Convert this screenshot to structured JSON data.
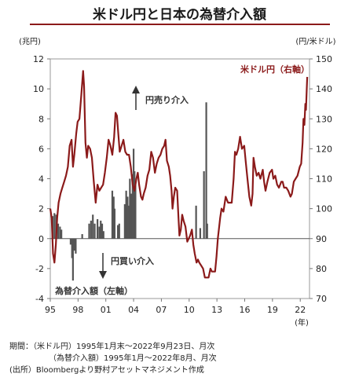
{
  "title": "米ドル円と日本の為替介入額",
  "chart_data": {
    "type": "bar+line",
    "left_axis": {
      "unit": "(兆円)",
      "ylim": [
        -4,
        12
      ],
      "ticks": [
        -4,
        -2,
        0,
        2,
        4,
        6,
        8,
        10,
        12
      ]
    },
    "right_axis": {
      "unit": "(円/米ドル)",
      "ylim": [
        70,
        150
      ],
      "ticks": [
        70,
        80,
        90,
        100,
        110,
        120,
        130,
        140,
        150
      ]
    },
    "x_axis": {
      "unit": "(年)",
      "xlim": [
        1995.0,
        2023.0
      ],
      "ticks": [
        {
          "year": 1995,
          "label": "95"
        },
        {
          "year": 1998,
          "label": "98"
        },
        {
          "year": 2001,
          "label": "01"
        },
        {
          "year": 2004,
          "label": "04"
        },
        {
          "year": 2007,
          "label": "07"
        },
        {
          "year": 2010,
          "label": "10"
        },
        {
          "year": 2013,
          "label": "13"
        },
        {
          "year": 2016,
          "label": "16"
        },
        {
          "year": 2019,
          "label": "19"
        },
        {
          "year": 2022,
          "label": "22"
        }
      ]
    },
    "line_series": {
      "name": "米ドル円（右軸）",
      "color": "#8b1a1a",
      "points": [
        [
          1995.0,
          100
        ],
        [
          1995.15,
          97
        ],
        [
          1995.3,
          85
        ],
        [
          1995.45,
          82
        ],
        [
          1995.6,
          88
        ],
        [
          1995.75,
          97
        ],
        [
          1995.9,
          102
        ],
        [
          1996.1,
          105
        ],
        [
          1996.3,
          107
        ],
        [
          1996.5,
          109
        ],
        [
          1996.7,
          111
        ],
        [
          1996.9,
          114
        ],
        [
          1997.1,
          121
        ],
        [
          1997.3,
          123
        ],
        [
          1997.45,
          114
        ],
        [
          1997.6,
          118
        ],
        [
          1997.8,
          125
        ],
        [
          1997.95,
          129
        ],
        [
          1998.15,
          130
        ],
        [
          1998.35,
          138
        ],
        [
          1998.55,
          146
        ],
        [
          1998.65,
          141
        ],
        [
          1998.8,
          122
        ],
        [
          1998.95,
          117
        ],
        [
          1999.1,
          121
        ],
        [
          1999.3,
          120
        ],
        [
          1999.5,
          117
        ],
        [
          1999.7,
          109
        ],
        [
          1999.9,
          102
        ],
        [
          2000.1,
          108
        ],
        [
          2000.3,
          106
        ],
        [
          2000.5,
          107
        ],
        [
          2000.7,
          108
        ],
        [
          2000.9,
          112
        ],
        [
          2001.1,
          117
        ],
        [
          2001.3,
          123
        ],
        [
          2001.5,
          121
        ],
        [
          2001.7,
          118
        ],
        [
          2001.9,
          124
        ],
        [
          2002.05,
          132
        ],
        [
          2002.2,
          131
        ],
        [
          2002.35,
          125
        ],
        [
          2002.5,
          119
        ],
        [
          2002.7,
          121
        ],
        [
          2002.9,
          123
        ],
        [
          2003.1,
          119
        ],
        [
          2003.3,
          118
        ],
        [
          2003.5,
          118
        ],
        [
          2003.7,
          114
        ],
        [
          2003.9,
          108
        ],
        [
          2004.1,
          106
        ],
        [
          2004.3,
          110
        ],
        [
          2004.45,
          112
        ],
        [
          2004.6,
          108
        ],
        [
          2004.8,
          104
        ],
        [
          2004.95,
          103
        ],
        [
          2005.1,
          105
        ],
        [
          2005.3,
          107
        ],
        [
          2005.5,
          111
        ],
        [
          2005.7,
          113
        ],
        [
          2005.9,
          119
        ],
        [
          2006.1,
          117
        ],
        [
          2006.3,
          112
        ],
        [
          2006.5,
          115
        ],
        [
          2006.7,
          117
        ],
        [
          2006.9,
          118
        ],
        [
          2007.1,
          120
        ],
        [
          2007.3,
          121
        ],
        [
          2007.45,
          123
        ],
        [
          2007.6,
          116
        ],
        [
          2007.8,
          114
        ],
        [
          2007.95,
          111
        ],
        [
          2008.1,
          106
        ],
        [
          2008.2,
          100
        ],
        [
          2008.35,
          104
        ],
        [
          2008.5,
          107
        ],
        [
          2008.7,
          106
        ],
        [
          2008.85,
          97
        ],
        [
          2008.95,
          91
        ],
        [
          2009.1,
          93
        ],
        [
          2009.25,
          98
        ],
        [
          2009.4,
          96
        ],
        [
          2009.6,
          94
        ],
        [
          2009.8,
          89
        ],
        [
          2009.95,
          90
        ],
        [
          2010.1,
          91
        ],
        [
          2010.3,
          93
        ],
        [
          2010.45,
          88
        ],
        [
          2010.6,
          85
        ],
        [
          2010.8,
          82
        ],
        [
          2010.95,
          83
        ],
        [
          2011.1,
          82
        ],
        [
          2011.3,
          81
        ],
        [
          2011.5,
          80
        ],
        [
          2011.7,
          77
        ],
        [
          2011.95,
          77
        ],
        [
          2012.1,
          77
        ],
        [
          2012.3,
          80
        ],
        [
          2012.45,
          79
        ],
        [
          2012.6,
          79
        ],
        [
          2012.8,
          79
        ],
        [
          2012.95,
          84
        ],
        [
          2013.1,
          90
        ],
        [
          2013.35,
          97
        ],
        [
          2013.5,
          100
        ],
        [
          2013.7,
          99
        ],
        [
          2013.95,
          104
        ],
        [
          2014.2,
          102
        ],
        [
          2014.45,
          102
        ],
        [
          2014.6,
          102
        ],
        [
          2014.8,
          110
        ],
        [
          2014.95,
          119
        ],
        [
          2015.1,
          118
        ],
        [
          2015.3,
          120
        ],
        [
          2015.5,
          124
        ],
        [
          2015.7,
          120
        ],
        [
          2015.95,
          121
        ],
        [
          2016.1,
          116
        ],
        [
          2016.3,
          110
        ],
        [
          2016.5,
          104
        ],
        [
          2016.7,
          101
        ],
        [
          2016.85,
          105
        ],
        [
          2016.95,
          117
        ],
        [
          2017.1,
          114
        ],
        [
          2017.3,
          111
        ],
        [
          2017.5,
          112
        ],
        [
          2017.7,
          110
        ],
        [
          2017.95,
          113
        ],
        [
          2018.1,
          109
        ],
        [
          2018.25,
          106
        ],
        [
          2018.45,
          109
        ],
        [
          2018.7,
          112
        ],
        [
          2018.95,
          113
        ],
        [
          2019.1,
          110
        ],
        [
          2019.3,
          111
        ],
        [
          2019.5,
          108
        ],
        [
          2019.7,
          107
        ],
        [
          2019.95,
          109
        ],
        [
          2020.1,
          109
        ],
        [
          2020.25,
          107
        ],
        [
          2020.5,
          107
        ],
        [
          2020.7,
          106
        ],
        [
          2020.95,
          104
        ],
        [
          2021.1,
          105
        ],
        [
          2021.3,
          109
        ],
        [
          2021.5,
          110
        ],
        [
          2021.7,
          111
        ],
        [
          2021.95,
          114
        ],
        [
          2022.1,
          115
        ],
        [
          2022.25,
          122
        ],
        [
          2022.35,
          130
        ],
        [
          2022.45,
          128
        ],
        [
          2022.55,
          135
        ],
        [
          2022.62,
          133
        ],
        [
          2022.7,
          140
        ],
        [
          2022.75,
          144
        ]
      ]
    },
    "bar_series": {
      "name": "為替介入額（左軸）",
      "color": "#555555",
      "bars": [
        [
          1995.25,
          1.5
        ],
        [
          1995.45,
          1.7
        ],
        [
          1995.65,
          1.6
        ],
        [
          1995.85,
          1.0
        ],
        [
          1996.05,
          0.8
        ],
        [
          1996.2,
          0.6
        ],
        [
          1997.2,
          -0.4
        ],
        [
          1997.35,
          -1.3
        ],
        [
          1997.45,
          -2.8
        ],
        [
          1997.6,
          -0.8
        ],
        [
          1997.75,
          -1.0
        ],
        [
          1998.45,
          0.3
        ],
        [
          1999.2,
          1.0
        ],
        [
          1999.4,
          1.2
        ],
        [
          1999.6,
          1.6
        ],
        [
          1999.8,
          1.0
        ],
        [
          2000.1,
          1.3
        ],
        [
          2000.3,
          0.8
        ],
        [
          2000.45,
          1.2
        ],
        [
          2000.6,
          1.0
        ],
        [
          2000.75,
          0.5
        ],
        [
          2001.7,
          3.2
        ],
        [
          2001.85,
          2.8
        ],
        [
          2001.95,
          2.0
        ],
        [
          2002.3,
          0.9
        ],
        [
          2002.45,
          1.0
        ],
        [
          2003.05,
          2.3
        ],
        [
          2003.2,
          3.2
        ],
        [
          2003.35,
          2.8
        ],
        [
          2003.5,
          2.2
        ],
        [
          2003.6,
          4.0
        ],
        [
          2003.7,
          3.0
        ],
        [
          2003.8,
          3.0
        ],
        [
          2003.9,
          4.3
        ],
        [
          2004.0,
          6.0
        ],
        [
          2004.1,
          4.5
        ],
        [
          2004.2,
          3.8
        ],
        [
          2010.75,
          2.2
        ],
        [
          2011.2,
          0.7
        ],
        [
          2011.6,
          4.5
        ],
        [
          2011.85,
          9.1
        ],
        [
          2011.95,
          1.0
        ]
      ]
    },
    "annotations": {
      "sell": "円売り介入",
      "buy": "円買い介入",
      "bar_label": "為替介入額（左軸）"
    }
  },
  "footnotes": [
    "期間：（米ドル円）1995年1月末～2022年9月23日、月次",
    "（為替介入額）1995年1月～2022年8月、月次",
    "(出所）Bloombergより野村アセットマネジメント作成"
  ]
}
